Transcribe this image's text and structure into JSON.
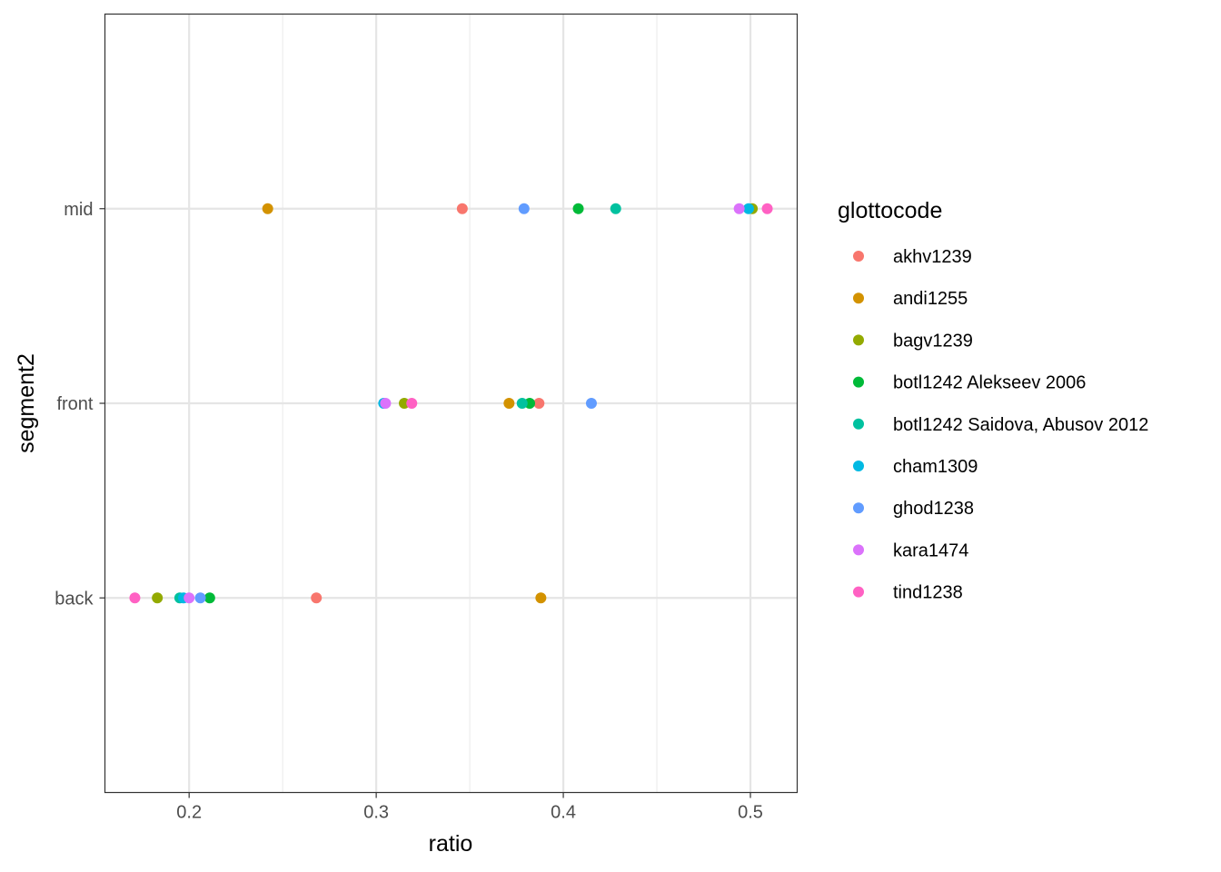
{
  "chart_data": {
    "type": "scatter",
    "xlabel": "ratio",
    "ylabel": "segment2",
    "xlim": [
      0.155,
      0.525
    ],
    "x_ticks": [
      0.2,
      0.3,
      0.4,
      0.5
    ],
    "x_tick_labels": [
      "0.2",
      "0.3",
      "0.4",
      "0.5"
    ],
    "categories": [
      "back",
      "front",
      "mid"
    ],
    "grid": true,
    "legend_position": "right",
    "legend_title": "glottocode",
    "series": [
      {
        "name": "akhv1239",
        "color": "#F8766D",
        "points": [
          {
            "y": "mid",
            "x": 0.346
          },
          {
            "y": "front",
            "x": 0.387
          },
          {
            "y": "back",
            "x": 0.268
          }
        ]
      },
      {
        "name": "andi1255",
        "color": "#D39200",
        "points": [
          {
            "y": "mid",
            "x": 0.242
          },
          {
            "y": "front",
            "x": 0.371
          },
          {
            "y": "back",
            "x": 0.388
          }
        ]
      },
      {
        "name": "bagv1239",
        "color": "#93AA00",
        "points": [
          {
            "y": "mid",
            "x": 0.501
          },
          {
            "y": "front",
            "x": 0.315
          },
          {
            "y": "back",
            "x": 0.183
          }
        ]
      },
      {
        "name": "botl1242 Alekseev 2006",
        "color": "#00BA38",
        "points": [
          {
            "y": "mid",
            "x": 0.408
          },
          {
            "y": "front",
            "x": 0.382
          },
          {
            "y": "back",
            "x": 0.211
          }
        ]
      },
      {
        "name": "botl1242 Saidova, Abusov 2012",
        "color": "#00C19F",
        "points": [
          {
            "y": "mid",
            "x": 0.428
          },
          {
            "y": "front",
            "x": 0.378
          },
          {
            "y": "back",
            "x": 0.195
          }
        ]
      },
      {
        "name": "cham1309",
        "color": "#00B9E3",
        "points": [
          {
            "y": "mid",
            "x": 0.499
          },
          {
            "y": "front",
            "x": 0.304
          },
          {
            "y": "back",
            "x": 0.197
          }
        ]
      },
      {
        "name": "ghod1238",
        "color": "#619CFF",
        "points": [
          {
            "y": "mid",
            "x": 0.379
          },
          {
            "y": "front",
            "x": 0.415
          },
          {
            "y": "back",
            "x": 0.206
          }
        ]
      },
      {
        "name": "kara1474",
        "color": "#DB72FB",
        "points": [
          {
            "y": "mid",
            "x": 0.494
          },
          {
            "y": "front",
            "x": 0.305
          },
          {
            "y": "back",
            "x": 0.2
          }
        ]
      },
      {
        "name": "tind1238",
        "color": "#FF61C3",
        "points": [
          {
            "y": "mid",
            "x": 0.509
          },
          {
            "y": "front",
            "x": 0.319
          },
          {
            "y": "back",
            "x": 0.171
          }
        ]
      }
    ]
  }
}
